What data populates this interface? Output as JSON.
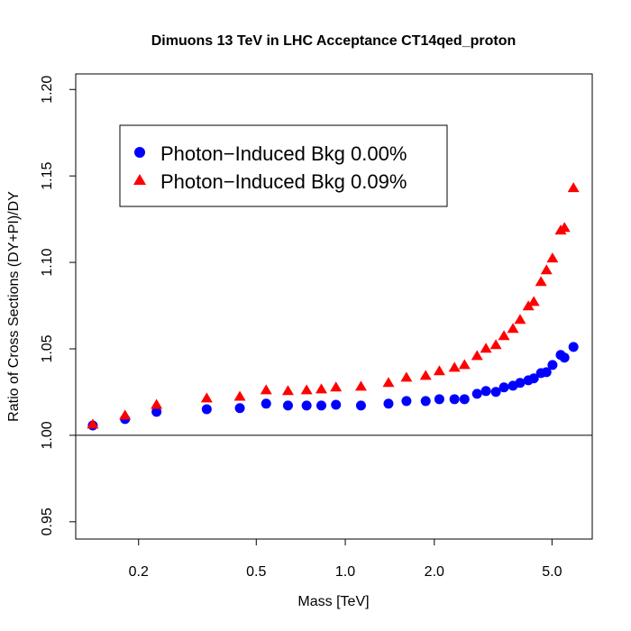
{
  "chart_data": {
    "type": "scatter",
    "title": "Dimuons 13 TeV in LHC Acceptance CT14qed_proton",
    "xlabel": "Mass [TeV]",
    "ylabel": "Ratio of Cross Sections (DY+PI)/DY",
    "x_scale": "log",
    "xlim": [
      0.1226,
      6.84
    ],
    "ylim": [
      0.94,
      1.209
    ],
    "xticks": [
      0.2,
      0.5,
      1.0,
      2.0,
      5.0
    ],
    "xtick_labels": [
      "0.2",
      "0.5",
      "1.0",
      "2.0",
      "5.0"
    ],
    "yticks": [
      0.95,
      1.0,
      1.05,
      1.1,
      1.15,
      1.2
    ],
    "ytick_labels": [
      "0.95",
      "1.00",
      "1.05",
      "1.10",
      "1.15",
      "1.20"
    ],
    "reference_line_y": 1.0,
    "grid": false,
    "legend_placement": "top-left",
    "series": [
      {
        "name": "Photon−Induced Bkg 0.00%",
        "marker": "circle",
        "color": "#0000ff",
        "x": [
          0.14,
          0.18,
          0.23,
          0.34,
          0.44,
          0.54,
          0.64,
          0.74,
          0.83,
          0.93,
          1.13,
          1.4,
          1.61,
          1.87,
          2.08,
          2.34,
          2.53,
          2.79,
          2.99,
          3.23,
          3.44,
          3.69,
          3.9,
          4.16,
          4.34,
          4.59,
          4.79,
          5.02,
          5.35,
          5.51,
          5.91
        ],
        "y": [
          1.0057,
          1.0094,
          1.0136,
          1.0151,
          1.0157,
          1.0183,
          1.0172,
          1.0172,
          1.0172,
          1.0177,
          1.0172,
          1.0183,
          1.0198,
          1.0198,
          1.0209,
          1.0209,
          1.0209,
          1.024,
          1.0256,
          1.0251,
          1.0277,
          1.0287,
          1.0303,
          1.0318,
          1.0329,
          1.036,
          1.0365,
          1.0407,
          1.0465,
          1.0449,
          1.0511
        ]
      },
      {
        "name": "Photon−Induced Bkg 0.09%",
        "marker": "triangle",
        "color": "#ff0000",
        "x": [
          0.14,
          0.18,
          0.23,
          0.34,
          0.44,
          0.54,
          0.64,
          0.74,
          0.83,
          0.93,
          1.13,
          1.4,
          1.61,
          1.87,
          2.08,
          2.34,
          2.53,
          2.79,
          2.99,
          3.23,
          3.44,
          3.69,
          3.9,
          4.16,
          4.34,
          4.59,
          4.79,
          5.02,
          5.35,
          5.51,
          5.91
        ],
        "y": [
          1.0063,
          1.0115,
          1.0177,
          1.0214,
          1.0224,
          1.0261,
          1.0256,
          1.0261,
          1.0266,
          1.0277,
          1.0282,
          1.0303,
          1.0334,
          1.0344,
          1.0371,
          1.0391,
          1.0407,
          1.0459,
          1.0501,
          1.0522,
          1.0574,
          1.0616,
          1.0668,
          1.0746,
          1.0772,
          1.0887,
          1.0955,
          1.1023,
          1.1185,
          1.12,
          1.143
        ]
      }
    ]
  }
}
